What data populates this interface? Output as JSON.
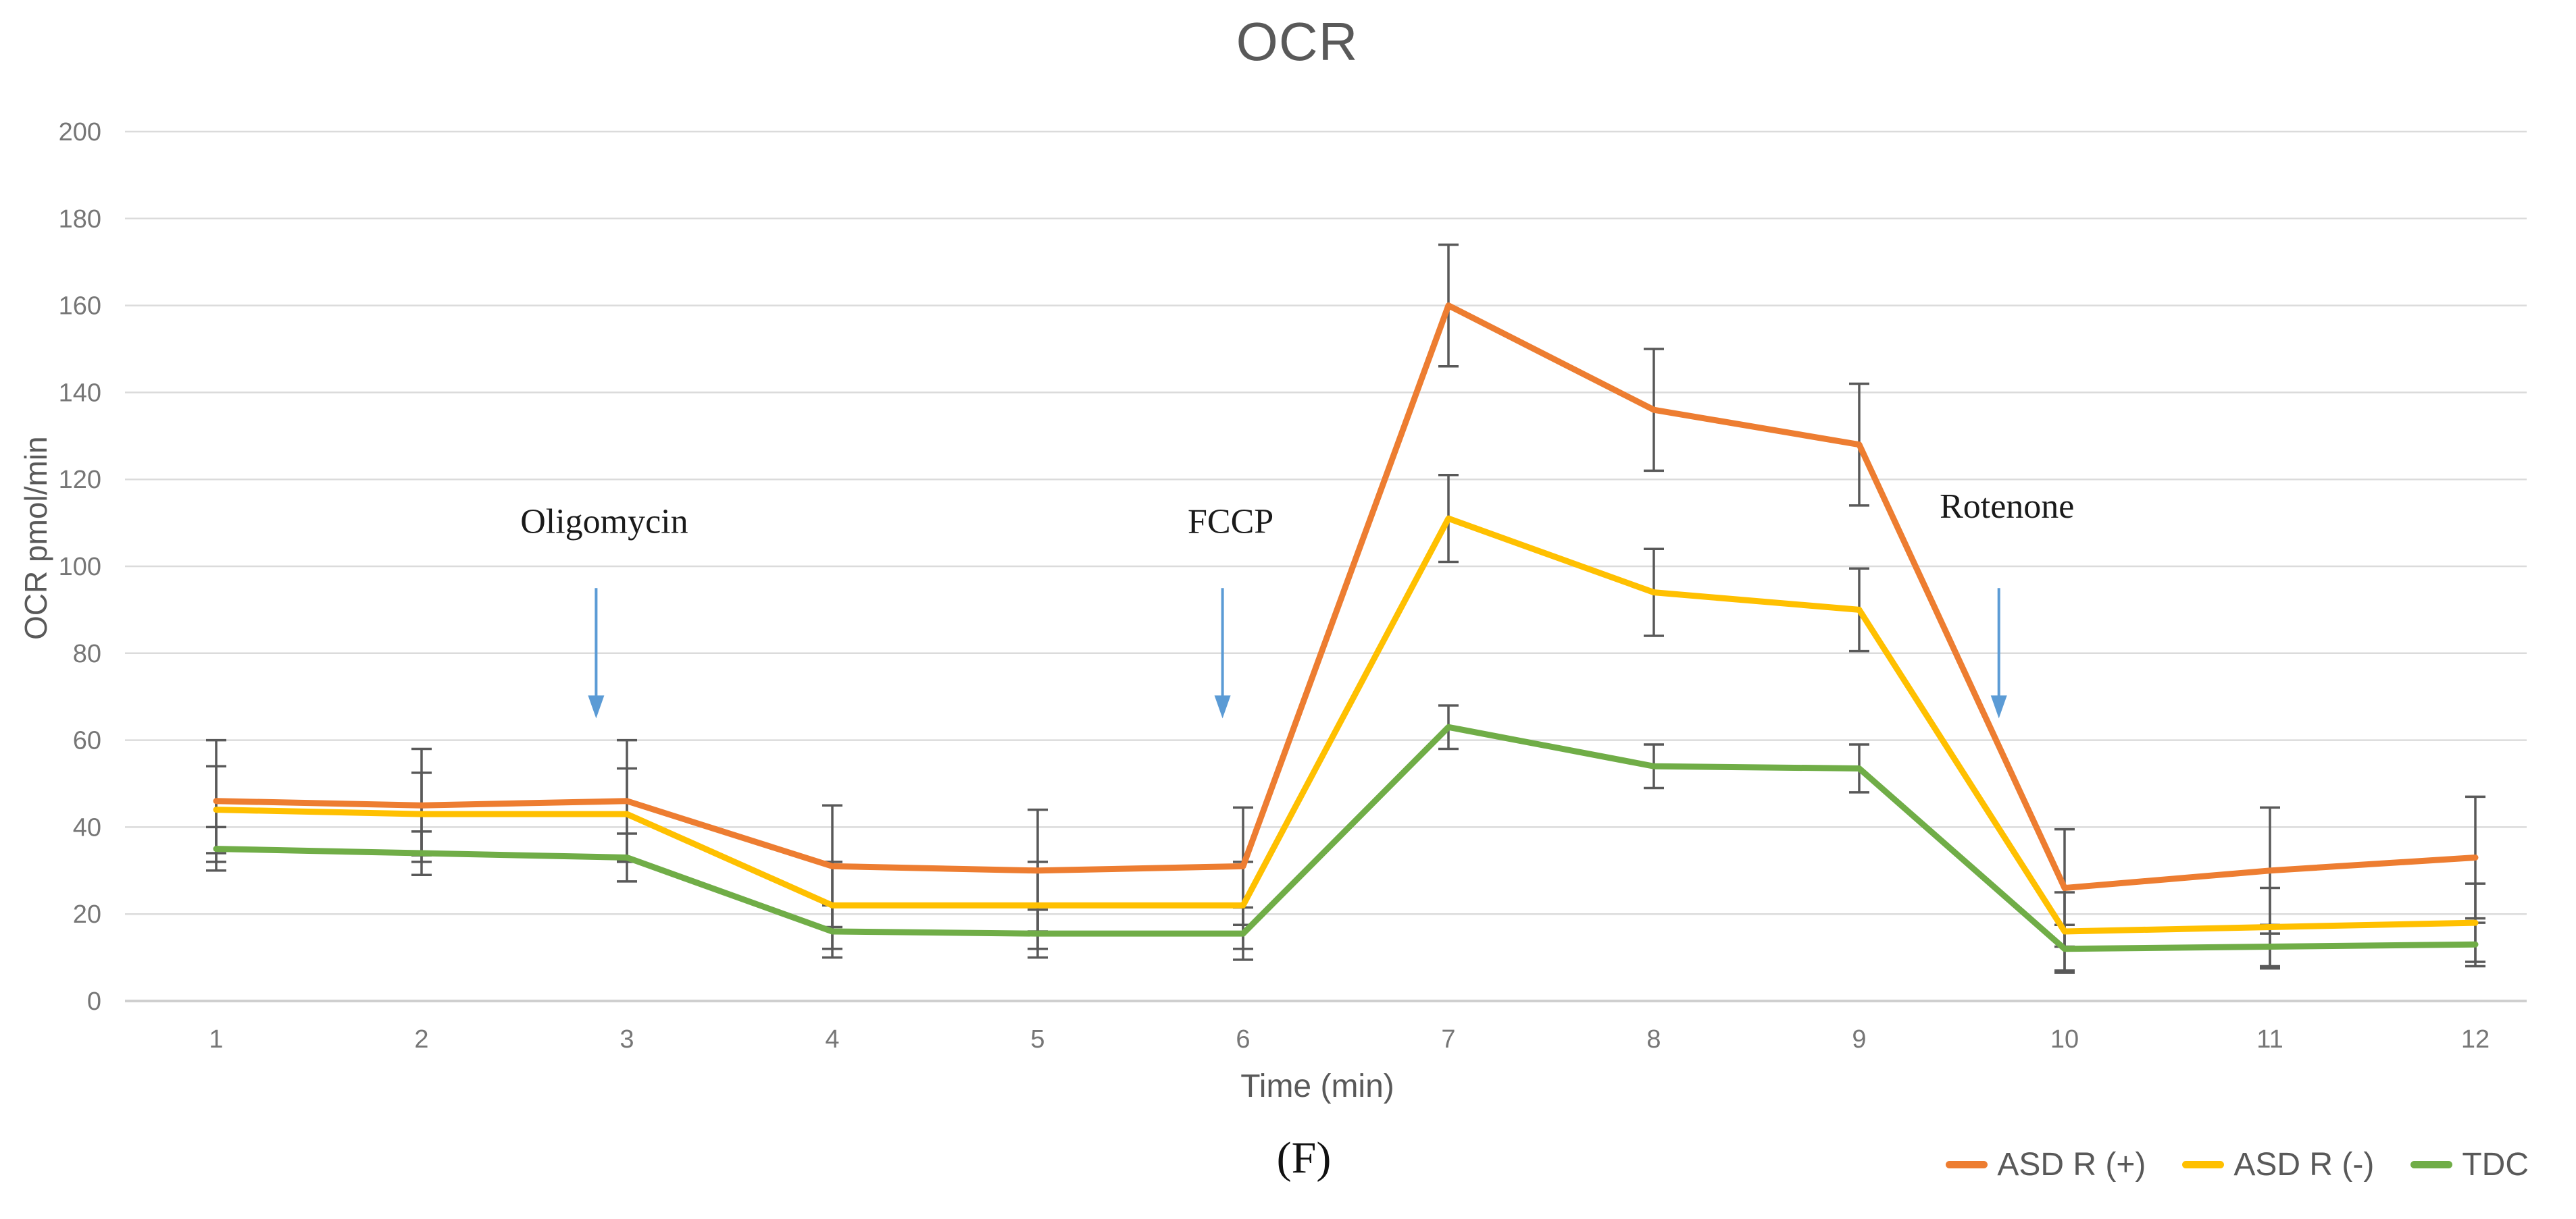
{
  "figure": {
    "caption": "(F)"
  },
  "chart_data": {
    "type": "line",
    "title": "OCR",
    "xlabel": "Time (min)",
    "ylabel": "OCR pmol/min",
    "x": [
      1,
      2,
      3,
      4,
      5,
      6,
      7,
      8,
      9,
      10,
      11,
      12
    ],
    "ylim": [
      0,
      200
    ],
    "ytick_step": 20,
    "grid": true,
    "legend_position": "bottom-right",
    "series": [
      {
        "name": "ASD R (+)",
        "color": "#ED7D31",
        "values": [
          46,
          45,
          46,
          31,
          30,
          31,
          160,
          136,
          128,
          26,
          30,
          33
        ],
        "errors": [
          14,
          13,
          14,
          14,
          14,
          13.5,
          14,
          14,
          14,
          13.5,
          14.5,
          14
        ]
      },
      {
        "name": "ASD R (-)",
        "color": "#FFC000",
        "values": [
          44,
          43,
          43,
          22,
          22,
          22,
          111,
          94,
          90,
          16,
          17,
          18
        ],
        "errors": [
          10,
          9.5,
          10.5,
          10,
          10,
          10,
          10,
          10,
          9.5,
          9,
          9,
          9
        ]
      },
      {
        "name": "TDC",
        "color": "#70AD47",
        "values": [
          35,
          34,
          33,
          16,
          15.5,
          15.5,
          63,
          54,
          53.5,
          12,
          12.5,
          13
        ],
        "errors": [
          5,
          5,
          5.5,
          6,
          5.5,
          6,
          5,
          5,
          5.5,
          5.5,
          5,
          5
        ]
      }
    ],
    "annotations": [
      {
        "label": "Oligomycin",
        "x": 2.85,
        "label_value": 110.5,
        "arrow_from_value": 95,
        "arrow_to_value": 65
      },
      {
        "label": "FCCP",
        "x": 5.9,
        "label_value": 110.5,
        "arrow_from_value": 95,
        "arrow_to_value": 65
      },
      {
        "label": "Rotenone",
        "x": 9.68,
        "label_value": 114,
        "arrow_from_value": 95,
        "arrow_to_value": 65
      }
    ],
    "colors": {
      "background": "#FFFFFF",
      "title_text": "#595959",
      "tick_text": "#767676",
      "gridline": "#DBDBDB",
      "axis_line": "#CFCFCF",
      "error_bar": "#595959",
      "annotation_text": "#1A1A1A",
      "annotation_arrow": "#5B9BD5"
    }
  }
}
